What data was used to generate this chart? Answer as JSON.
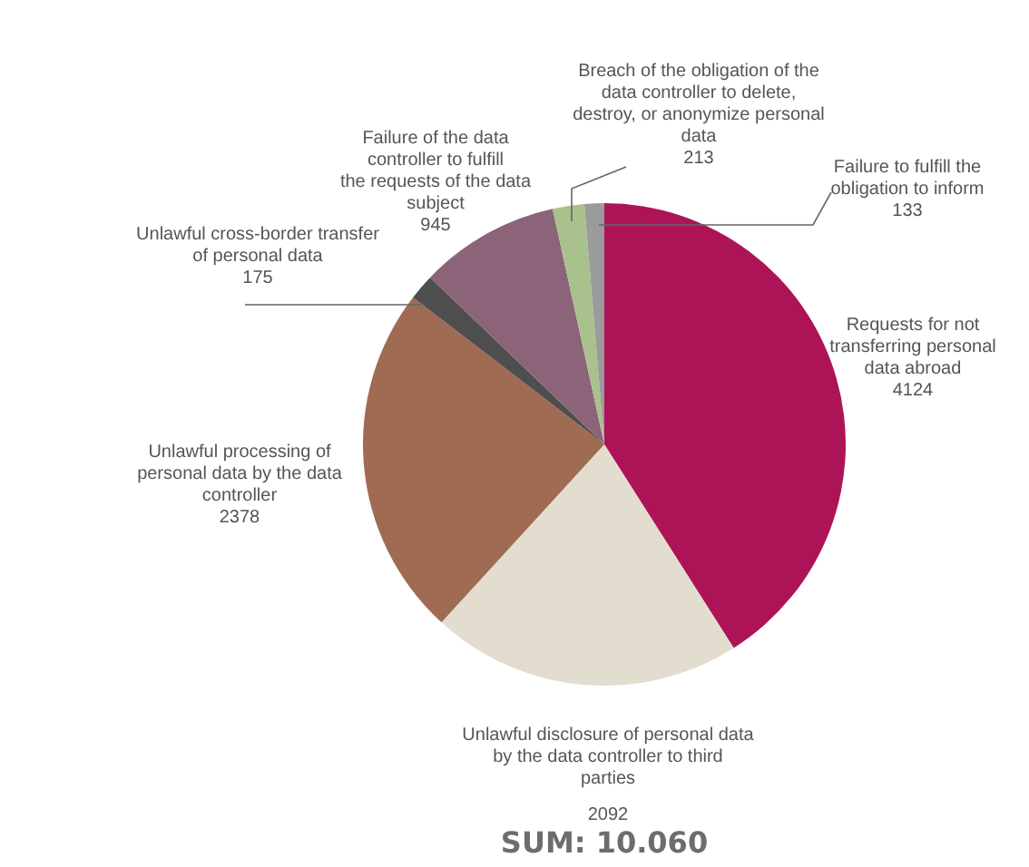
{
  "chart_data": {
    "type": "pie",
    "categories": [
      "Requests for not transferring personal data abroad",
      "Unlawful disclosure of personal data by the data controller to third parties",
      "Unlawful processing of personal data by the data controller",
      "Unlawful cross-border transfer of personal data",
      "Failure of the data controller to fulfill the requests of the data subject",
      "Breach of the obligation of the data controller to delete, destroy, or anonymize personal data",
      "Failure to fulfill the obligation to inform"
    ],
    "values": [
      4124,
      2092,
      2378,
      175,
      945,
      213,
      133
    ],
    "colors": [
      "#ad1457",
      "#e3ddd0",
      "#a06b53",
      "#4e4e4e",
      "#8b6479",
      "#a9c18c",
      "#9b9b9b"
    ],
    "data_labels": true,
    "annotations": [
      "SUM: 10.060"
    ]
  }
}
